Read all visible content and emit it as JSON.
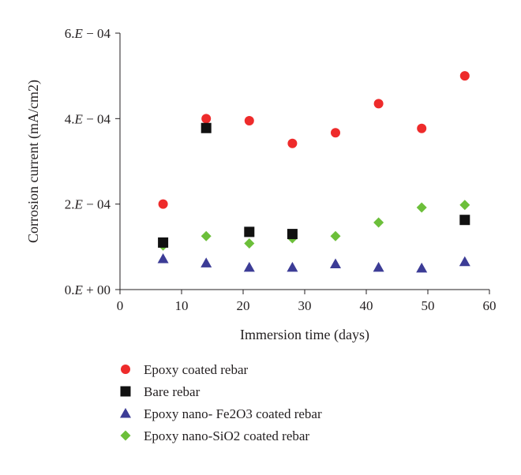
{
  "chart_data": {
    "type": "scatter",
    "xlabel": "Immersion time (days)",
    "ylabel": "Corrosion current (mA/cm2)",
    "xlim": [
      0,
      60
    ],
    "ylim": [
      0,
      0.0006
    ],
    "x_ticks": [
      0,
      10,
      20,
      30,
      40,
      50,
      60
    ],
    "y_ticks": [
      {
        "value": 0,
        "mantissa": "0.",
        "sign": "+",
        "exp": "00"
      },
      {
        "value": 0.0002,
        "mantissa": "2.",
        "sign": "−",
        "exp": "04"
      },
      {
        "value": 0.0004,
        "mantissa": "4.",
        "sign": "−",
        "exp": "04"
      },
      {
        "value": 0.0006,
        "mantissa": "6.",
        "sign": "−",
        "exp": "04"
      }
    ],
    "e_letter": "E",
    "grid": false,
    "legend_position": "bottom",
    "series": [
      {
        "name": "Epoxy coated rebar",
        "marker": "circle",
        "color": "#ee2b2b",
        "points": [
          [
            7,
            0.0002
          ],
          [
            14,
            0.0004
          ],
          [
            21,
            0.000395
          ],
          [
            28,
            0.000342
          ],
          [
            35,
            0.000367
          ],
          [
            42,
            0.000435
          ],
          [
            49,
            0.000377
          ],
          [
            56,
            0.0005
          ]
        ]
      },
      {
        "name": "Bare rebar",
        "marker": "square",
        "color": "#111111",
        "points": [
          [
            7,
            0.00011
          ],
          [
            14,
            0.000378
          ],
          [
            21,
            0.000135
          ],
          [
            28,
            0.00013
          ],
          [
            56,
            0.000163
          ]
        ]
      },
      {
        "name": "Epoxy nano- Fe2O3 coated rebar",
        "marker": "triangle",
        "color": "#3c3c96",
        "points": [
          [
            7,
            7.2e-05
          ],
          [
            14,
            6.2e-05
          ],
          [
            21,
            5.2e-05
          ],
          [
            28,
            5.2e-05
          ],
          [
            35,
            6e-05
          ],
          [
            42,
            5.2e-05
          ],
          [
            49,
            5e-05
          ],
          [
            56,
            6.5e-05
          ]
        ]
      },
      {
        "name": "Epoxy nano-SiO2 coated rebar",
        "marker": "diamond",
        "color": "#6cbf3a",
        "points": [
          [
            7,
            0.000103
          ],
          [
            14,
            0.000125
          ],
          [
            21,
            0.000108
          ],
          [
            28,
            0.00012
          ],
          [
            35,
            0.000125
          ],
          [
            42,
            0.000157
          ],
          [
            49,
            0.000192
          ],
          [
            56,
            0.000198
          ]
        ]
      }
    ]
  }
}
